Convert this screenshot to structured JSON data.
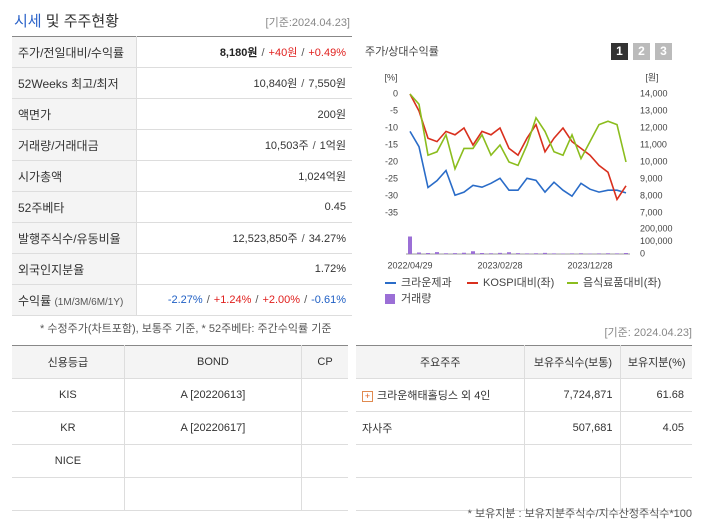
{
  "header": {
    "title_highlight": "시세",
    "title_rest": "및 주주현황",
    "date": "[기준:2024.04.23]"
  },
  "summary": {
    "separator": "/",
    "rows": [
      {
        "label": "주가/전일대비/수익률",
        "values": [
          {
            "text": "8,180원",
            "color": "#222222",
            "bold": true
          },
          {
            "text": "+40원",
            "color": "#e0201e"
          },
          {
            "text": "+0.49%",
            "color": "#e0201e"
          }
        ]
      },
      {
        "label": "52Weeks 최고/최저",
        "values": [
          {
            "text": "10,840원",
            "color": "#333333"
          },
          {
            "text": "7,550원",
            "color": "#333333"
          }
        ]
      },
      {
        "label": "액면가",
        "values": [
          {
            "text": "200원",
            "color": "#333333"
          }
        ]
      },
      {
        "label": "거래량/거래대금",
        "values": [
          {
            "text": "10,503주",
            "color": "#333333"
          },
          {
            "text": "1억원",
            "color": "#333333"
          }
        ]
      },
      {
        "label": "시가총액",
        "values": [
          {
            "text": "1,024억원",
            "color": "#333333"
          }
        ]
      },
      {
        "label": "52주베타",
        "values": [
          {
            "text": "0.45",
            "color": "#333333"
          }
        ]
      },
      {
        "label": "발행주식수/유동비율",
        "values": [
          {
            "text": "12,523,850주",
            "color": "#333333"
          },
          {
            "text": "34.27%",
            "color": "#333333"
          }
        ]
      },
      {
        "label": "외국인지분율",
        "values": [
          {
            "text": "1.72%",
            "color": "#333333"
          }
        ]
      },
      {
        "label": "수익률",
        "label_note": "(1M/3M/6M/1Y)",
        "values": [
          {
            "text": "-2.27%",
            "color": "#1f5fc4"
          },
          {
            "text": "+1.24%",
            "color": "#e0201e"
          },
          {
            "text": "+2.00%",
            "color": "#e0201e"
          },
          {
            "text": "-0.61%",
            "color": "#1f5fc4"
          }
        ]
      }
    ]
  },
  "summary_note": "* 수정주가(차트포함), 보통주 기준, * 52주베타: 주간수익률 기준",
  "chart_data": {
    "type": "line",
    "title": "주가/상대수익률",
    "buttons": [
      "1",
      "2",
      "3"
    ],
    "y_unit": "[%]",
    "y2_unit": "[원]",
    "categories": [
      "2022/04/29",
      null,
      null,
      null,
      null,
      null,
      null,
      null,
      null,
      null,
      "2023/02/28",
      null,
      null,
      null,
      null,
      null,
      null,
      null,
      null,
      null,
      "2023/12/28",
      null,
      null,
      null,
      null
    ],
    "series": [
      {
        "name": "크라운제과",
        "color": "#2a6cc8",
        "axis": "y2",
        "values": [
          11800,
          10900,
          8500,
          8900,
          9500,
          8050,
          8230,
          8630,
          8520,
          8750,
          9040,
          8340,
          8340,
          9040,
          8920,
          8230,
          8810,
          8340,
          7990,
          8750,
          8400,
          8230,
          8340,
          8340,
          8180
        ]
      },
      {
        "name": "KOSPI대비(좌)",
        "color": "#d9301e",
        "values": [
          0,
          -5,
          -13,
          -14,
          -11,
          -12,
          -10,
          -15,
          -11,
          -12,
          -10,
          -16,
          -18,
          -13,
          -9,
          -17,
          -13,
          -10,
          -14,
          -16,
          -18,
          -21,
          -23,
          -31,
          -27
        ]
      },
      {
        "name": "음식료품대비(좌)",
        "color": "#8bbd1e",
        "values": [
          0,
          -3,
          -18,
          -17,
          -12,
          -22,
          -16,
          -16,
          -12,
          -18,
          -15,
          -20,
          -21,
          -15,
          -7,
          -11,
          -17,
          -18,
          -12,
          -19,
          -14,
          -9,
          -8,
          -9,
          -20
        ]
      },
      {
        "name": "거래량",
        "color": "#9b6fd6",
        "type": "bar",
        "axis": "y3",
        "values": [
          140000,
          12000,
          8000,
          15000,
          6000,
          7000,
          10000,
          22000,
          8000,
          6000,
          9000,
          14000,
          7000,
          5000,
          6000,
          9000,
          5000,
          4000,
          5000,
          6000,
          4000,
          5000,
          6000,
          5000,
          8000
        ]
      }
    ],
    "ylim": [
      -35,
      0
    ],
    "yticks": [
      0,
      -5,
      -10,
      -15,
      -20,
      -25,
      -30,
      -35
    ],
    "y2lim": [
      7000,
      14000
    ],
    "y2ticks": [
      {
        "value": 14000,
        "label": "14,000"
      },
      {
        "value": 13000,
        "label": "13,000"
      },
      {
        "value": 12000,
        "label": "12,000"
      },
      {
        "value": 11000,
        "label": "11,000"
      },
      {
        "value": 10000,
        "label": "10,000"
      },
      {
        "value": 9000,
        "label": "9,000"
      },
      {
        "value": 8000,
        "label": "8,000"
      },
      {
        "value": 7000,
        "label": "7,000"
      }
    ],
    "y3lim": [
      0,
      200000
    ],
    "y3ticks": [
      {
        "value": 200000,
        "label": "200,000"
      },
      {
        "value": 100000,
        "label": "100,000"
      },
      0
    ],
    "grid": false
  },
  "date2": "[기준: 2024.04.23]",
  "credit_table": {
    "columns": [
      "신용등급",
      "BOND",
      "CP"
    ],
    "rows": [
      [
        "KIS",
        "A [20220613]",
        null
      ],
      [
        "KR",
        "A [20220617]",
        null
      ],
      [
        "NICE",
        null,
        null
      ]
    ]
  },
  "holders_table": {
    "columns": [
      "주요주주",
      "보유주식수(보통)",
      "보유지분(%)"
    ],
    "rows": [
      [
        "크라운해태홀딩스 외 4인",
        "7,724,871",
        "61.68"
      ],
      [
        "자사주",
        "507,681",
        "4.05"
      ]
    ]
  },
  "holders_note": "* 보유지분 : 보유지분주식수/지수산정주식수*100"
}
